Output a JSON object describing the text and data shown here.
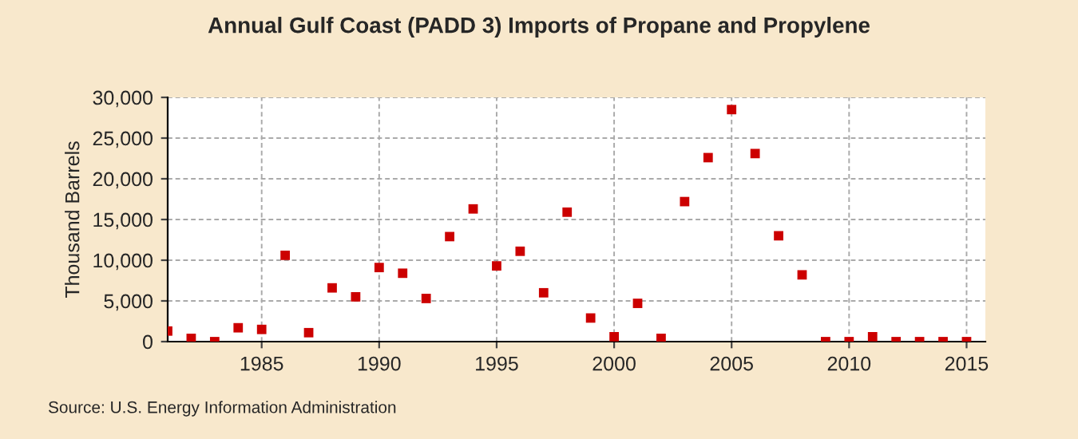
{
  "chart_data": {
    "type": "scatter",
    "title": "Annual Gulf Coast (PADD 3) Imports of Propane and Propylene",
    "ylabel": "Thousand Barrels",
    "x": [
      1981,
      1982,
      1983,
      1984,
      1985,
      1986,
      1987,
      1988,
      1989,
      1990,
      1991,
      1992,
      1993,
      1994,
      1995,
      1996,
      1997,
      1998,
      1999,
      2000,
      2001,
      2002,
      2003,
      2004,
      2005,
      2006,
      2007,
      2008,
      2009,
      2010,
      2011,
      2012,
      2013,
      2014,
      2015
    ],
    "series": [
      {
        "color": "#cc0000",
        "values": [
          1300,
          400,
          0,
          1700,
          1500,
          10600,
          1100,
          6600,
          5500,
          9100,
          8400,
          5300,
          12900,
          16300,
          9300,
          11100,
          6000,
          15900,
          2900,
          600,
          4700,
          400,
          17200,
          22600,
          28500,
          23100,
          13000,
          8200,
          0,
          0,
          600,
          0,
          0,
          0,
          0
        ]
      }
    ],
    "xlim": [
      1981,
      2015.8
    ],
    "xticks": [
      1985,
      1990,
      1995,
      2000,
      2005,
      2010,
      2015
    ],
    "ylim": [
      0,
      30000
    ],
    "yticks": [
      {
        "value": 0,
        "label": "0"
      },
      {
        "value": 5000,
        "label": "5,000"
      },
      {
        "value": 10000,
        "label": "10,000"
      },
      {
        "value": 15000,
        "label": "15,000"
      },
      {
        "value": 20000,
        "label": "20,000"
      },
      {
        "value": 25000,
        "label": "25,000"
      },
      {
        "value": 30000,
        "label": "30,000"
      }
    ],
    "grid": true,
    "marker": "square",
    "annotations": [
      "Source: U.S. Energy Information Administration"
    ]
  }
}
